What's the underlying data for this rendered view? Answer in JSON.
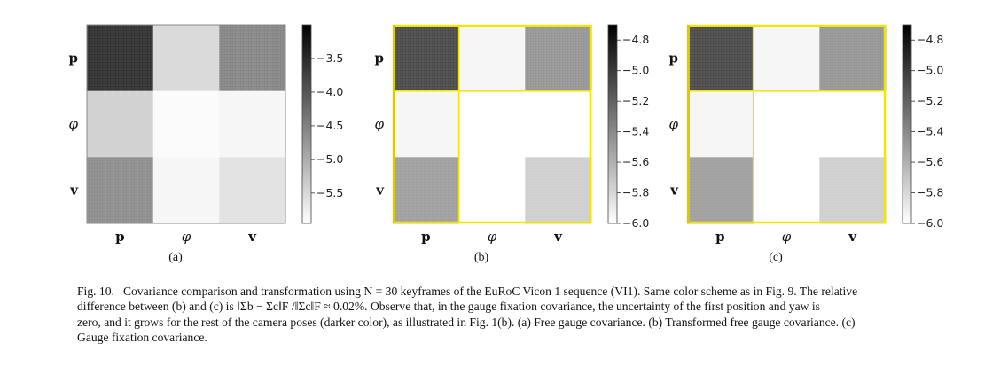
{
  "figure": {
    "row_labels": [
      "p",
      "φ",
      "v"
    ],
    "col_labels": [
      "p",
      "φ",
      "v"
    ],
    "panels": [
      {
        "id": "a",
        "label": "(a)",
        "border_color": "#808080",
        "colorbar": {
          "ticks": [
            "−3.5",
            "−4.0",
            "−4.5",
            "−5.0",
            "−5.5"
          ],
          "range": [
            -5.95,
            -3.0
          ],
          "tick_values": [
            -3.5,
            -4.0,
            -4.5,
            -5.0,
            -5.5
          ]
        },
        "block_levels": [
          [
            -3.5,
            -5.5,
            -4.5
          ],
          [
            -5.4,
            -5.9,
            -5.85
          ],
          [
            -4.6,
            -5.85,
            -5.6
          ]
        ]
      },
      {
        "id": "b",
        "label": "(b)",
        "border_color": "#f2e600",
        "colorbar": {
          "ticks": [
            "−4.8",
            "−5.0",
            "−5.2",
            "−5.4",
            "−5.6",
            "−5.8",
            "−6.0"
          ],
          "range": [
            -6.0,
            -4.7
          ],
          "tick_values": [
            -4.8,
            -5.0,
            -5.2,
            -5.4,
            -5.6,
            -5.8,
            -6.0
          ]
        },
        "block_levels": [
          [
            -5.05,
            -5.95,
            -5.45
          ],
          [
            -5.95,
            -6.0,
            -6.0
          ],
          [
            -5.5,
            -6.0,
            -5.75
          ]
        ]
      },
      {
        "id": "c",
        "label": "(c)",
        "border_color": "#f2e600",
        "colorbar": {
          "ticks": [
            "−4.8",
            "−5.0",
            "−5.2",
            "−5.4",
            "−5.6",
            "−5.8",
            "−6.0"
          ],
          "range": [
            -6.0,
            -4.7
          ],
          "tick_values": [
            -4.8,
            -5.0,
            -5.2,
            -5.4,
            -5.6,
            -5.8,
            -6.0
          ]
        },
        "block_levels": [
          [
            -5.05,
            -5.95,
            -5.45
          ],
          [
            -5.95,
            -6.0,
            -6.0
          ],
          [
            -5.5,
            -6.0,
            -5.75
          ]
        ]
      }
    ]
  },
  "caption": {
    "fig_label": "Fig. 10.",
    "lines": [
      "Covariance comparison and transformation using N = 30 keyframes of the EuRoC Vicon 1 sequence (VI1). Same color scheme as in Fig. 9. The relative",
      "difference between (b) and (c) is ‖Σb − Σc‖F /‖Σc‖F ≈ 0.02%. Observe that, in the gauge fixation covariance, the uncertainty of the first position and yaw is",
      "zero, and it grows for the rest of the camera poses (darker color), as illustrated in Fig. 1(b). (a) Free gauge covariance. (b) Transformed free gauge covariance. (c)",
      "Gauge fixation covariance."
    ]
  }
}
